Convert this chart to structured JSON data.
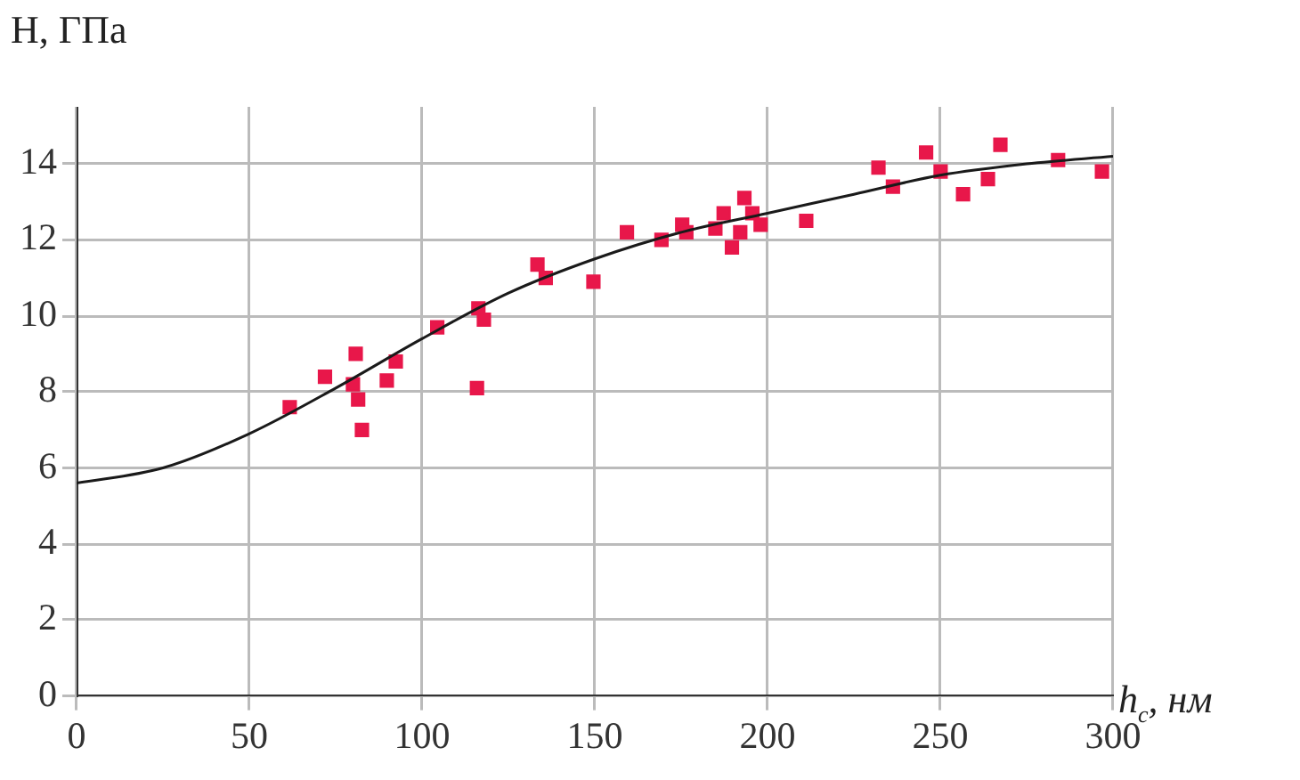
{
  "chart_data": {
    "type": "scatter",
    "xlabel": "h$_{c}$, нм",
    "ylabel": "H, ГПа",
    "xlim": [
      0,
      300
    ],
    "ylim": [
      0,
      15.5
    ],
    "xticks": [
      0,
      50,
      100,
      150,
      200,
      250,
      300
    ],
    "yticks": [
      0,
      2,
      4,
      6,
      8,
      10,
      12,
      14
    ],
    "grid": true,
    "legend": false,
    "series": [
      {
        "marker": "square",
        "color": "#e8174a",
        "x": [
          61.7,
          71.9,
          80.8,
          80,
          81.5,
          82.6,
          89.8,
          92.4,
          104.4,
          116.3,
          117.9,
          115.9,
          133.4,
          135.8,
          149.6,
          159.3,
          169.3,
          175.3,
          176.5,
          184.9,
          187.3,
          189.7,
          192.1,
          193.3,
          195.6,
          198,
          211.2,
          232.1,
          236.3,
          245.9,
          250.1,
          256.6,
          263.8,
          267.4,
          284.1,
          296.8
        ],
        "values": [
          7.6,
          8.4,
          9.0,
          8.2,
          7.8,
          7.0,
          8.3,
          8.8,
          9.7,
          10.2,
          9.9,
          8.1,
          11.35,
          11.0,
          10.9,
          12.2,
          12.0,
          12.4,
          12.2,
          12.3,
          12.7,
          11.8,
          12.2,
          13.1,
          12.7,
          12.4,
          12.5,
          13.9,
          13.4,
          14.3,
          13.8,
          13.2,
          13.6,
          14.5,
          14.1,
          13.8
        ]
      },
      {
        "type": "line",
        "marker": "none",
        "color": "#1a1a1a",
        "x": [
          0,
          25,
          50,
          75,
          100,
          125,
          150,
          175,
          200,
          225,
          250,
          275,
          300
        ],
        "values": [
          5.6,
          6.0,
          6.9,
          8.1,
          9.4,
          10.6,
          11.5,
          12.2,
          12.7,
          13.2,
          13.7,
          14.0,
          14.2
        ]
      }
    ]
  }
}
